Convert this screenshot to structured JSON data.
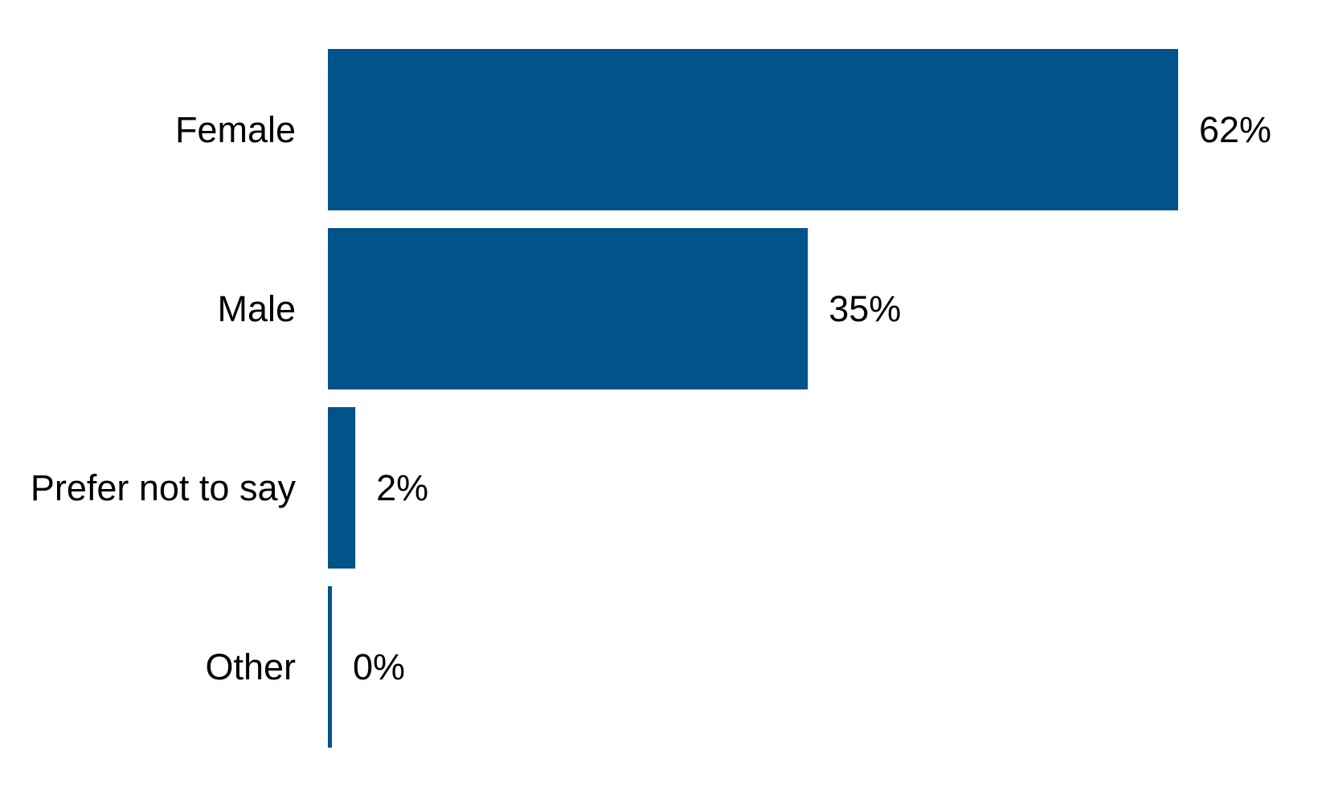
{
  "chart_data": {
    "type": "bar",
    "orientation": "horizontal",
    "categories": [
      "Female",
      "Male",
      "Prefer not to say",
      "Other"
    ],
    "values": [
      62,
      35,
      2,
      0
    ],
    "value_labels": [
      "62%",
      "35%",
      "2%",
      "0%"
    ],
    "unit": "%",
    "xlim": [
      0,
      62
    ],
    "bar_color": "#02538A",
    "grid": false,
    "legend": "none",
    "axes_visible": false
  }
}
